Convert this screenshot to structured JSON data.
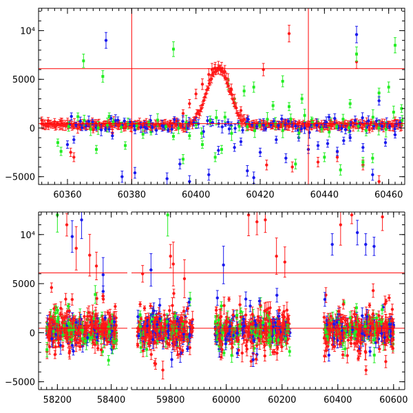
{
  "figure": {
    "colors": {
      "axis": "#000000",
      "reference_line": "#ff0000",
      "series_red": "#ff1a1a",
      "series_green": "#22ee22",
      "series_blue": "#1a1aee"
    }
  },
  "chart_data": [
    {
      "type": "scatter",
      "title": "",
      "xlabel": "",
      "ylabel": "",
      "xlim": [
        60351,
        60465
      ],
      "ylim": [
        -5800,
        12300
      ],
      "grid": false,
      "error_bars": true,
      "x_ticks": [
        60360,
        60380,
        60400,
        60420,
        60440,
        60460
      ],
      "x_tick_labels": [
        "60360",
        "60380",
        "60400",
        "60420",
        "60440",
        "60460"
      ],
      "y_ticks": [
        -5000,
        0,
        5000,
        10000
      ],
      "y_tick_labels": [
        "−5000",
        "0",
        "5000",
        "10⁴"
      ],
      "horizontal_lines": [
        6100,
        450
      ],
      "vertical_lines": [
        60380,
        60435
      ],
      "series": [
        {
          "color": "red",
          "marker": "filled-circle",
          "points": [
            [
              60352,
              800
            ],
            [
              60354,
              750
            ],
            [
              60356,
              650
            ],
            [
              60358,
              700
            ],
            [
              60360,
              500
            ],
            [
              60361,
              -2500
            ],
            [
              60362,
              -3000
            ],
            [
              60364,
              100
            ],
            [
              60366,
              200
            ],
            [
              60368,
              -200
            ],
            [
              60370,
              300
            ],
            [
              60372,
              0
            ],
            [
              60374,
              -500
            ],
            [
              60376,
              200
            ],
            [
              60378,
              0
            ],
            [
              60380,
              300
            ],
            [
              60382,
              100
            ],
            [
              60384,
              500
            ],
            [
              60386,
              200
            ],
            [
              60388,
              400
            ],
            [
              60390,
              300
            ],
            [
              60392,
              500
            ],
            [
              60394,
              700
            ],
            [
              60396,
              1500
            ],
            [
              60398,
              2500
            ],
            [
              60400,
              3500
            ],
            [
              60402,
              4500
            ],
            [
              60404,
              5500
            ],
            [
              60405,
              6000
            ],
            [
              60406,
              6100
            ],
            [
              60407,
              6200
            ],
            [
              60408,
              6100
            ],
            [
              60409,
              5800
            ],
            [
              60410,
              5000
            ],
            [
              60411,
              4000
            ],
            [
              60412,
              3000
            ],
            [
              60414,
              1800
            ],
            [
              60416,
              1000
            ],
            [
              60418,
              500
            ],
            [
              60420,
              300
            ],
            [
              60421,
              6000
            ],
            [
              60422,
              -3800
            ],
            [
              60424,
              200
            ],
            [
              60426,
              100
            ],
            [
              60428,
              500
            ],
            [
              60429,
              9700
            ],
            [
              60430,
              -4000
            ],
            [
              60432,
              0
            ],
            [
              60434,
              300
            ],
            [
              60436,
              200
            ],
            [
              60438,
              -3500
            ],
            [
              60440,
              500
            ],
            [
              60442,
              200
            ],
            [
              60444,
              -3000
            ],
            [
              60446,
              400
            ],
            [
              60448,
              300
            ],
            [
              60450,
              6800
            ],
            [
              60452,
              -3800
            ],
            [
              60454,
              -200
            ],
            [
              60456,
              300
            ],
            [
              60457,
              -5500
            ],
            [
              60458,
              600
            ],
            [
              60460,
              400
            ],
            [
              60462,
              800
            ],
            [
              60464,
              500
            ]
          ]
        },
        {
          "color": "green",
          "marker": "filled-square",
          "points": [
            [
              60357,
              -1500
            ],
            [
              60358,
              -2400
            ],
            [
              60365,
              6900
            ],
            [
              60369,
              -2200
            ],
            [
              60371,
              5300
            ],
            [
              60373,
              1200
            ],
            [
              60378,
              -1800
            ],
            [
              60386,
              -400
            ],
            [
              60393,
              8100
            ],
            [
              60396,
              -3200
            ],
            [
              60398,
              -800
            ],
            [
              60402,
              -1700
            ],
            [
              60406,
              -3000
            ],
            [
              60408,
              -2200
            ],
            [
              60410,
              4500
            ],
            [
              60412,
              2600
            ],
            [
              60415,
              3800
            ],
            [
              60418,
              4200
            ],
            [
              60421,
              500
            ],
            [
              60424,
              2300
            ],
            [
              60427,
              4800
            ],
            [
              60429,
              2200
            ],
            [
              60431,
              -3700
            ],
            [
              60433,
              3000
            ],
            [
              60436,
              800
            ],
            [
              60438,
              600
            ],
            [
              60440,
              -3000
            ],
            [
              60442,
              700
            ],
            [
              60445,
              -4300
            ],
            [
              60448,
              2500
            ],
            [
              60450,
              7600
            ],
            [
              60452,
              -3500
            ],
            [
              60455,
              -3100
            ],
            [
              60457,
              3600
            ],
            [
              60460,
              4200
            ],
            [
              60462,
              8500
            ],
            [
              60464,
              2000
            ]
          ]
        },
        {
          "color": "blue",
          "marker": "filled-circle",
          "points": [
            [
              60360,
              -1700
            ],
            [
              60362,
              -1200
            ],
            [
              60372,
              9000
            ],
            [
              60374,
              -800
            ],
            [
              60377,
              -5000
            ],
            [
              60381,
              -4600
            ],
            [
              60391,
              -5200
            ],
            [
              60395,
              -3700
            ],
            [
              60398,
              -5500
            ],
            [
              60404,
              -4800
            ],
            [
              60407,
              -2300
            ],
            [
              60410,
              600
            ],
            [
              60412,
              -2000
            ],
            [
              60414,
              -1400
            ],
            [
              60416,
              -4400
            ],
            [
              60418,
              -5100
            ],
            [
              60420,
              -2500
            ],
            [
              60425,
              -1200
            ],
            [
              60428,
              -3100
            ],
            [
              60432,
              -1000
            ],
            [
              60435,
              -2200
            ],
            [
              60438,
              -1800
            ],
            [
              60441,
              -1600
            ],
            [
              60444,
              -2400
            ],
            [
              60446,
              -1300
            ],
            [
              60448,
              -1000
            ],
            [
              60450,
              9600
            ],
            [
              60452,
              -2000
            ],
            [
              60455,
              -4800
            ],
            [
              60457,
              2800
            ],
            [
              60459,
              -1500
            ],
            [
              60462,
              -700
            ]
          ]
        }
      ]
    },
    {
      "type": "scatter",
      "title": "",
      "xlabel": "",
      "ylabel": "",
      "ylim": [
        -5800,
        12300
      ],
      "grid": false,
      "error_bars": true,
      "x_ticks": [
        58200,
        58400,
        59800,
        60000,
        60200,
        60400,
        60600
      ],
      "x_tick_labels": [
        "58200",
        "58400",
        "59800",
        "60000",
        "60200",
        "60400",
        "60600"
      ],
      "y_ticks": [
        -5000,
        0,
        5000,
        10000
      ],
      "y_tick_labels": [
        "−5000",
        "0",
        "5000",
        "10⁴"
      ],
      "horizontal_lines": [
        6100,
        450
      ],
      "segments": [
        {
          "xlim": [
            58130,
            58460
          ]
        },
        {
          "xlim": [
            59660,
            60640
          ]
        }
      ],
      "clusters": [
        {
          "range": [
            58160,
            58420
          ],
          "spread": 4500,
          "outliers": [
            [
              58200,
              12000,
              "green"
            ],
            [
              58235,
              11000,
              "red"
            ],
            [
              58255,
              9800,
              "blue"
            ],
            [
              58270,
              8600,
              "red"
            ],
            [
              58290,
              11500,
              "blue"
            ],
            [
              58320,
              7900,
              "red"
            ],
            [
              58345,
              6800,
              "red"
            ],
            [
              58370,
              5900,
              "blue"
            ]
          ]
        },
        {
          "range": [
            59680,
            59880
          ],
          "spread": 4500,
          "outliers": [
            [
              59700,
              6000,
              "red"
            ],
            [
              59730,
              6400,
              "blue"
            ],
            [
              59790,
              12000,
              "green"
            ],
            [
              59800,
              7800,
              "red"
            ],
            [
              59810,
              7000,
              "red"
            ],
            [
              59850,
              5500,
              "red"
            ]
          ]
        },
        {
          "range": [
            59960,
            60230
          ],
          "spread": 4500,
          "outliers": [
            [
              60080,
              12000,
              "red"
            ],
            [
              60110,
              11300,
              "red"
            ],
            [
              60140,
              11500,
              "red"
            ],
            [
              60180,
              7800,
              "red"
            ],
            [
              60210,
              7200,
              "red"
            ],
            [
              59990,
              6900,
              "blue"
            ]
          ]
        },
        {
          "range": [
            60350,
            60600
          ],
          "spread": 4500,
          "outliers": [
            [
              60380,
              9000,
              "blue"
            ],
            [
              60410,
              11000,
              "red"
            ],
            [
              60450,
              12000,
              "red"
            ],
            [
              60470,
              10200,
              "blue"
            ],
            [
              60500,
              9000,
              "blue"
            ],
            [
              60530,
              8800,
              "blue"
            ],
            [
              60560,
              11800,
              "red"
            ]
          ]
        }
      ]
    }
  ]
}
